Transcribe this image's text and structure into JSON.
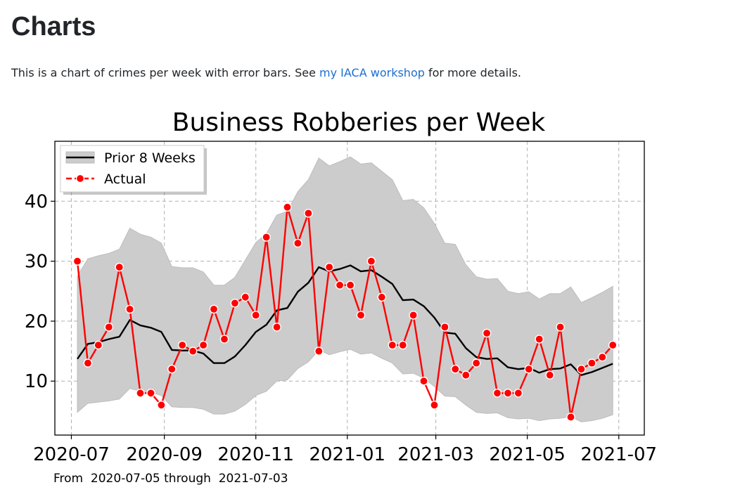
{
  "page": {
    "title": "Charts",
    "intro_before": "This is a chart of crimes per week with error bars. See ",
    "intro_link": "my IACA workshop",
    "intro_after": " for more details."
  },
  "chart_data": {
    "type": "line",
    "title": "Business Robberies per Week",
    "xlabel": "",
    "ylabel": "",
    "x_ticks": [
      "2020-07",
      "2020-09",
      "2020-11",
      "2021-01",
      "2021-03",
      "2021-05",
      "2021-07"
    ],
    "y_ticks": [
      10,
      20,
      30,
      40
    ],
    "xlim": [
      "2020-06-20",
      "2021-07-18"
    ],
    "ylim": [
      1,
      50
    ],
    "grid": true,
    "grid_style": "dashed",
    "legend_position": "top-left",
    "footnote": "From  2020-07-05 through  2021-07-03",
    "dates": [
      "2020-07-05",
      "2020-07-12",
      "2020-07-19",
      "2020-07-26",
      "2020-08-02",
      "2020-08-09",
      "2020-08-16",
      "2020-08-23",
      "2020-08-30",
      "2020-09-06",
      "2020-09-13",
      "2020-09-20",
      "2020-09-27",
      "2020-10-04",
      "2020-10-11",
      "2020-10-18",
      "2020-10-25",
      "2020-11-01",
      "2020-11-08",
      "2020-11-15",
      "2020-11-22",
      "2020-11-29",
      "2020-12-06",
      "2020-12-13",
      "2020-12-20",
      "2020-12-27",
      "2021-01-03",
      "2021-01-10",
      "2021-01-17",
      "2021-01-24",
      "2021-01-31",
      "2021-02-07",
      "2021-02-14",
      "2021-02-21",
      "2021-02-28",
      "2021-03-07",
      "2021-03-14",
      "2021-03-21",
      "2021-03-28",
      "2021-04-04",
      "2021-04-11",
      "2021-04-18",
      "2021-04-25",
      "2021-05-02",
      "2021-05-09",
      "2021-05-16",
      "2021-05-23",
      "2021-05-30",
      "2021-06-06",
      "2021-06-13",
      "2021-06-20",
      "2021-06-27"
    ],
    "series": [
      {
        "name": "Actual",
        "color": "#ff0000",
        "marker": "circle",
        "values": [
          30,
          13,
          16,
          19,
          29,
          22,
          8,
          8,
          6,
          12,
          16,
          15,
          16,
          22,
          17,
          23,
          24,
          21,
          34,
          19,
          39,
          33,
          38,
          15,
          29,
          26,
          26,
          21,
          30,
          24,
          16,
          16,
          21,
          10,
          6,
          19,
          12,
          11,
          13,
          18,
          8,
          8,
          8,
          12,
          17,
          11,
          19,
          4,
          12,
          13,
          14,
          16
        ]
      },
      {
        "name": "Prior 8 Weeks",
        "color": "#000000",
        "band_color": "#cccccc",
        "values": [
          13.7,
          16.2,
          16.5,
          17,
          17.4,
          20.2,
          19.3,
          18.9,
          18.2,
          15.2,
          15.1,
          15.1,
          14.6,
          13,
          13,
          14.1,
          16,
          18.2,
          19.4,
          21.8,
          22.2,
          24.9,
          26.4,
          29,
          28.3,
          28.7,
          29.3,
          28.3,
          28.5,
          27.4,
          26.2,
          23.5,
          23.6,
          22.5,
          20.6,
          18.1,
          17.9,
          15.5,
          14,
          13.7,
          13.8,
          12.3,
          12,
          12.2,
          11.4,
          12,
          12.1,
          12.8,
          11,
          11.5,
          12.2,
          12.9
        ],
        "lower": [
          4.8,
          6.3,
          6.5,
          6.7,
          7,
          8.8,
          8.3,
          8.1,
          7.6,
          5.7,
          5.6,
          5.6,
          5.3,
          4.5,
          4.5,
          5,
          6.1,
          7.6,
          8.3,
          10,
          10.2,
          12.1,
          13.2,
          15.2,
          14.4,
          14.9,
          15.3,
          14.5,
          14.7,
          13.8,
          13,
          11.2,
          11.3,
          10.5,
          9.1,
          7.5,
          7.4,
          6,
          4.8,
          4.6,
          4.7,
          3.9,
          3.7,
          3.8,
          3.4,
          3.7,
          3.8,
          4.1,
          3.2,
          3.4,
          3.8,
          4.4
        ],
        "upper": [
          27.5,
          30.4,
          30.9,
          31.3,
          32,
          35.5,
          34.5,
          34,
          33,
          29.1,
          28.9,
          28.9,
          28.2,
          26,
          26,
          27.3,
          30.2,
          33.1,
          34.6,
          37.7,
          38.3,
          41.6,
          43.6,
          47.2,
          45.9,
          46.6,
          47.4,
          46.2,
          46.4,
          45,
          43.6,
          40.1,
          40.3,
          38.9,
          36.3,
          33,
          32.8,
          29.4,
          27.4,
          27,
          27.1,
          25,
          24.6,
          24.9,
          23.7,
          24.6,
          24.6,
          25.7,
          23.1,
          23.9,
          24.8,
          25.8
        ]
      }
    ]
  }
}
